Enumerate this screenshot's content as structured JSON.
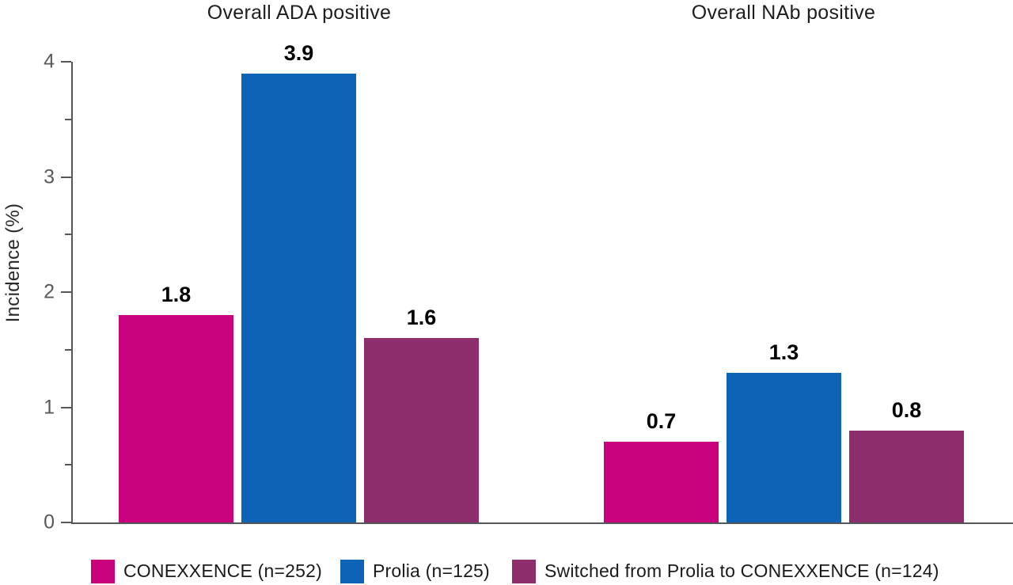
{
  "chart_data": {
    "type": "bar",
    "title": "",
    "ylabel": "Incidence (%)",
    "ylim": [
      0,
      4
    ],
    "yticks_major": [
      0,
      1,
      2,
      3,
      4
    ],
    "yticks_minor": [
      0.5,
      1.5,
      2.5,
      3.5
    ],
    "grid": false,
    "legend_position": "bottom",
    "categories": [
      "Overall ADA positive",
      "Overall NAb positive"
    ],
    "series": [
      {
        "name": "CONEXXENCE (n=252)",
        "color": "#C9017C",
        "values": [
          1.8,
          0.7
        ]
      },
      {
        "name": "Prolia (n=125)",
        "color": "#0D64B6",
        "values": [
          3.9,
          1.3
        ]
      },
      {
        "name": "Switched from Prolia to CONEXXENCE (n=124)",
        "color": "#8E2D6C",
        "values": [
          1.6,
          0.8
        ]
      }
    ]
  }
}
